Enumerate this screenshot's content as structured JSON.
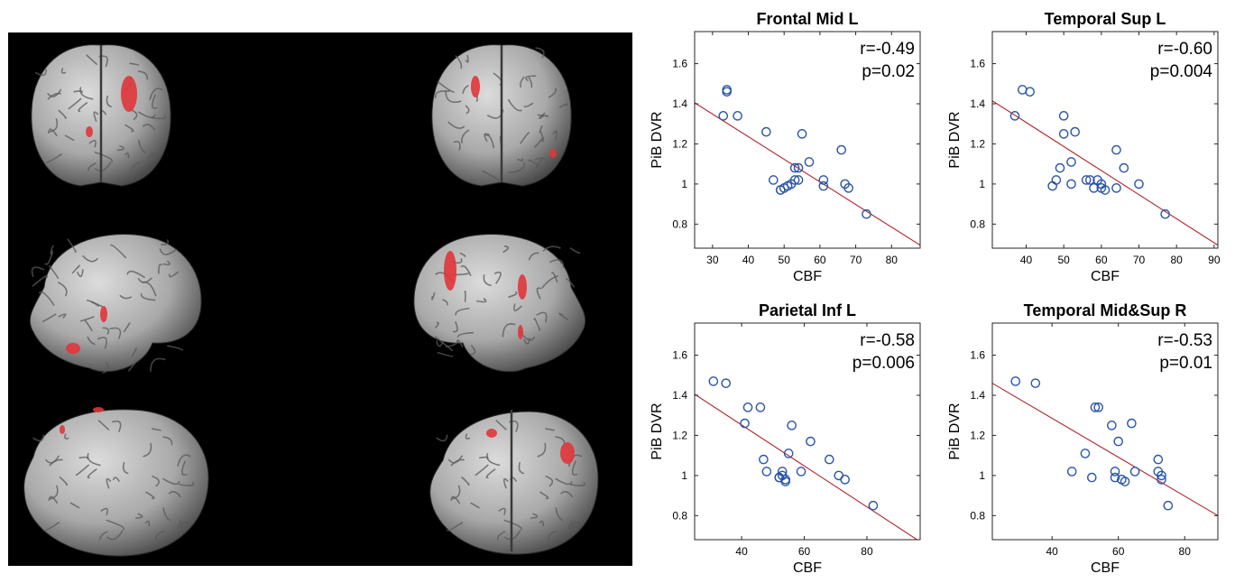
{
  "brain_figure": {
    "views": [
      {
        "name": "anterior"
      },
      {
        "name": "posterior"
      },
      {
        "name": "left-lateral"
      },
      {
        "name": "right-lateral"
      },
      {
        "name": "inferior"
      },
      {
        "name": "superior"
      }
    ],
    "colors": {
      "background": "#000000",
      "cortex": "#a9a9a9",
      "activation": "#e0353a"
    }
  },
  "chart_data": [
    {
      "type": "scatter",
      "title": "Frontal Mid L",
      "xlabel": "CBF",
      "ylabel": "PiB DVR",
      "stat_r": "r=-0.49",
      "stat_p": "p=0.02",
      "xlim": [
        25,
        88
      ],
      "ylim": [
        0.68,
        1.76
      ],
      "xticks": [
        30,
        40,
        50,
        60,
        70,
        80
      ],
      "yticks": [
        0.8,
        1,
        1.2,
        1.4,
        1.6
      ],
      "x": [
        33,
        34,
        34,
        37,
        45,
        47,
        49,
        49,
        50,
        51,
        52,
        53,
        53,
        54,
        54,
        55,
        57,
        61,
        61,
        66,
        67,
        68,
        73
      ],
      "y": [
        1.34,
        1.46,
        1.47,
        1.34,
        1.26,
        1.02,
        0.97,
        0.97,
        0.98,
        0.99,
        1.0,
        1.02,
        1.08,
        1.08,
        1.02,
        1.25,
        1.11,
        1.02,
        0.99,
        1.17,
        1.0,
        0.98,
        0.85
      ],
      "fit": {
        "x": [
          25,
          88
        ],
        "y": [
          1.405,
          0.695
        ]
      },
      "marker_color": "#2a55a5",
      "fit_color": "#b0202a"
    },
    {
      "type": "scatter",
      "title": "Temporal Sup L",
      "xlabel": "CBF",
      "ylabel": "PiB DVR",
      "stat_r": "r=-0.60",
      "stat_p": "p=0.004",
      "xlim": [
        31,
        91
      ],
      "ylim": [
        0.68,
        1.76
      ],
      "xticks": [
        40,
        50,
        60,
        70,
        80,
        90
      ],
      "yticks": [
        0.8,
        1,
        1.2,
        1.4,
        1.6
      ],
      "x": [
        37,
        39,
        41,
        47,
        48,
        49,
        50,
        50,
        52,
        52,
        53,
        56,
        57,
        58,
        59,
        60,
        60,
        61,
        64,
        64,
        66,
        70,
        77
      ],
      "y": [
        1.34,
        1.47,
        1.46,
        0.99,
        1.02,
        1.08,
        1.25,
        1.34,
        1.0,
        1.11,
        1.26,
        1.02,
        1.02,
        0.98,
        1.02,
        0.98,
        1.0,
        0.97,
        0.98,
        1.17,
        1.08,
        1.0,
        0.85
      ],
      "fit": {
        "x": [
          31,
          91
        ],
        "y": [
          1.415,
          0.695
        ]
      },
      "marker_color": "#2a55a5",
      "fit_color": "#b0202a"
    },
    {
      "type": "scatter",
      "title": "Parietal Inf L",
      "xlabel": "CBF",
      "ylabel": "PiB DVR",
      "stat_r": "r=-0.58",
      "stat_p": "p=0.006",
      "xlim": [
        25,
        97
      ],
      "ylim": [
        0.68,
        1.76
      ],
      "xticks": [
        40,
        60,
        80
      ],
      "yticks": [
        0.8,
        1,
        1.2,
        1.4,
        1.6
      ],
      "x": [
        31,
        35,
        41,
        42,
        46,
        47,
        48,
        52,
        52,
        53,
        53,
        54,
        54,
        55,
        56,
        59,
        62,
        68,
        71,
        73,
        82
      ],
      "y": [
        1.47,
        1.46,
        1.26,
        1.34,
        1.34,
        1.08,
        1.02,
        0.99,
        0.99,
        1.02,
        1.0,
        0.98,
        0.97,
        1.11,
        1.25,
        1.02,
        1.17,
        1.08,
        1.0,
        0.98,
        0.85
      ],
      "fit": {
        "x": [
          25,
          97
        ],
        "y": [
          1.405,
          0.67
        ]
      },
      "marker_color": "#2a55a5",
      "fit_color": "#b0202a"
    },
    {
      "type": "scatter",
      "title": "Temporal Mid&Sup R",
      "xlabel": "CBF",
      "ylabel": "PiB DVR",
      "stat_r": "r=-0.53",
      "stat_p": "p=0.01",
      "xlim": [
        22,
        90
      ],
      "ylim": [
        0.68,
        1.76
      ],
      "xticks": [
        40,
        60,
        80
      ],
      "yticks": [
        0.8,
        1,
        1.2,
        1.4,
        1.6
      ],
      "x": [
        29,
        35,
        46,
        50,
        52,
        53,
        54,
        58,
        59,
        59,
        60,
        61,
        62,
        64,
        65,
        72,
        72,
        73,
        73,
        75
      ],
      "y": [
        1.47,
        1.46,
        1.02,
        1.11,
        0.99,
        1.34,
        1.34,
        1.25,
        0.99,
        1.02,
        1.17,
        0.98,
        0.97,
        1.26,
        1.02,
        1.02,
        1.08,
        1.0,
        0.98,
        0.85
      ],
      "fit": {
        "x": [
          22,
          90
        ],
        "y": [
          1.46,
          0.8
        ]
      },
      "marker_color": "#2a55a5",
      "fit_color": "#b0202a"
    }
  ]
}
